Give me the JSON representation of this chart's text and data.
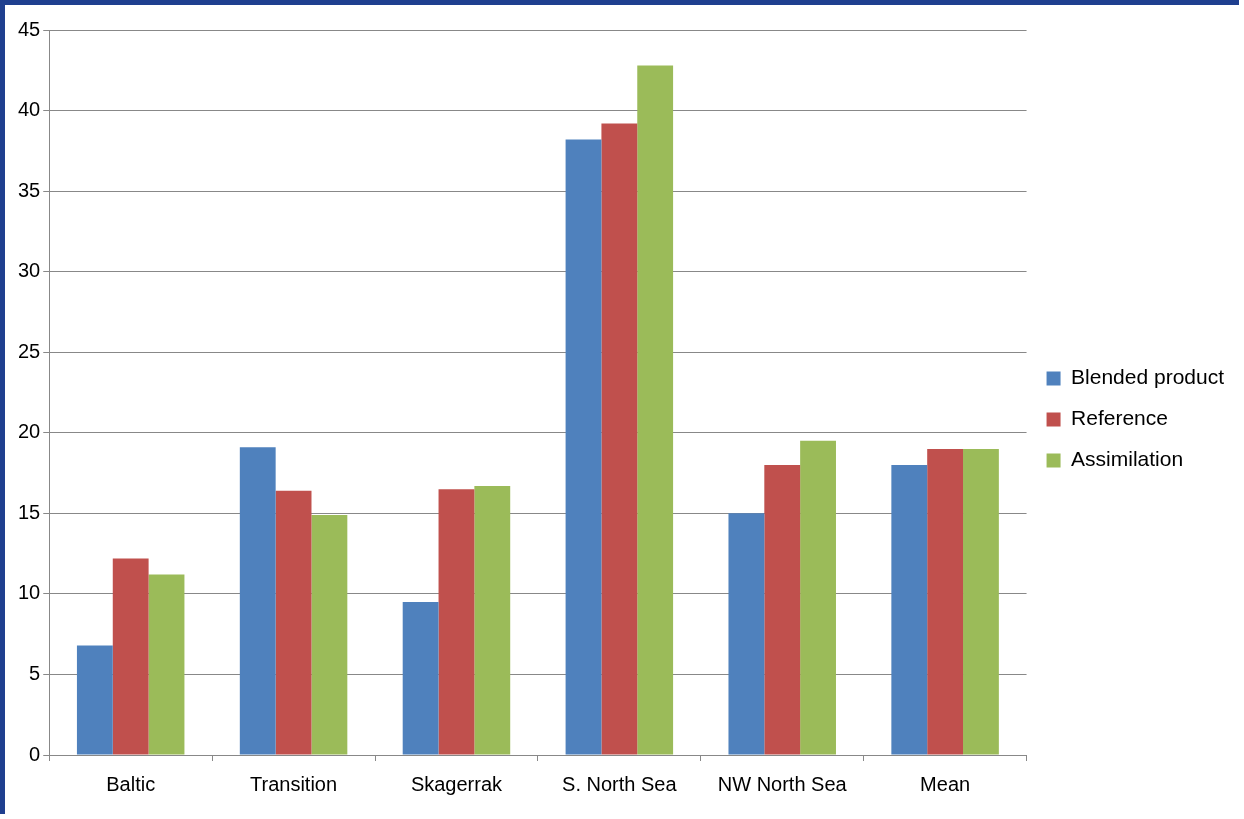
{
  "chart_data": {
    "type": "bar",
    "categories": [
      "Baltic",
      "Transition",
      "Skagerrak",
      "S. North Sea",
      "NW North Sea",
      "Mean"
    ],
    "series": [
      {
        "name": "Blended product",
        "color": "#4f81bd",
        "values": [
          6.8,
          19.1,
          9.5,
          38.2,
          15.0,
          18.0
        ]
      },
      {
        "name": "Reference",
        "color": "#c0504d",
        "values": [
          12.2,
          16.4,
          16.5,
          39.2,
          18.0,
          19.0
        ]
      },
      {
        "name": "Assimilation",
        "color": "#9bbb59",
        "values": [
          11.2,
          14.9,
          16.7,
          42.8,
          19.5,
          19.0
        ]
      }
    ],
    "ylim": [
      0,
      45
    ],
    "yticks": [
      0,
      5,
      10,
      15,
      20,
      25,
      30,
      35,
      40,
      45
    ],
    "grid": "y",
    "legend": "right"
  }
}
